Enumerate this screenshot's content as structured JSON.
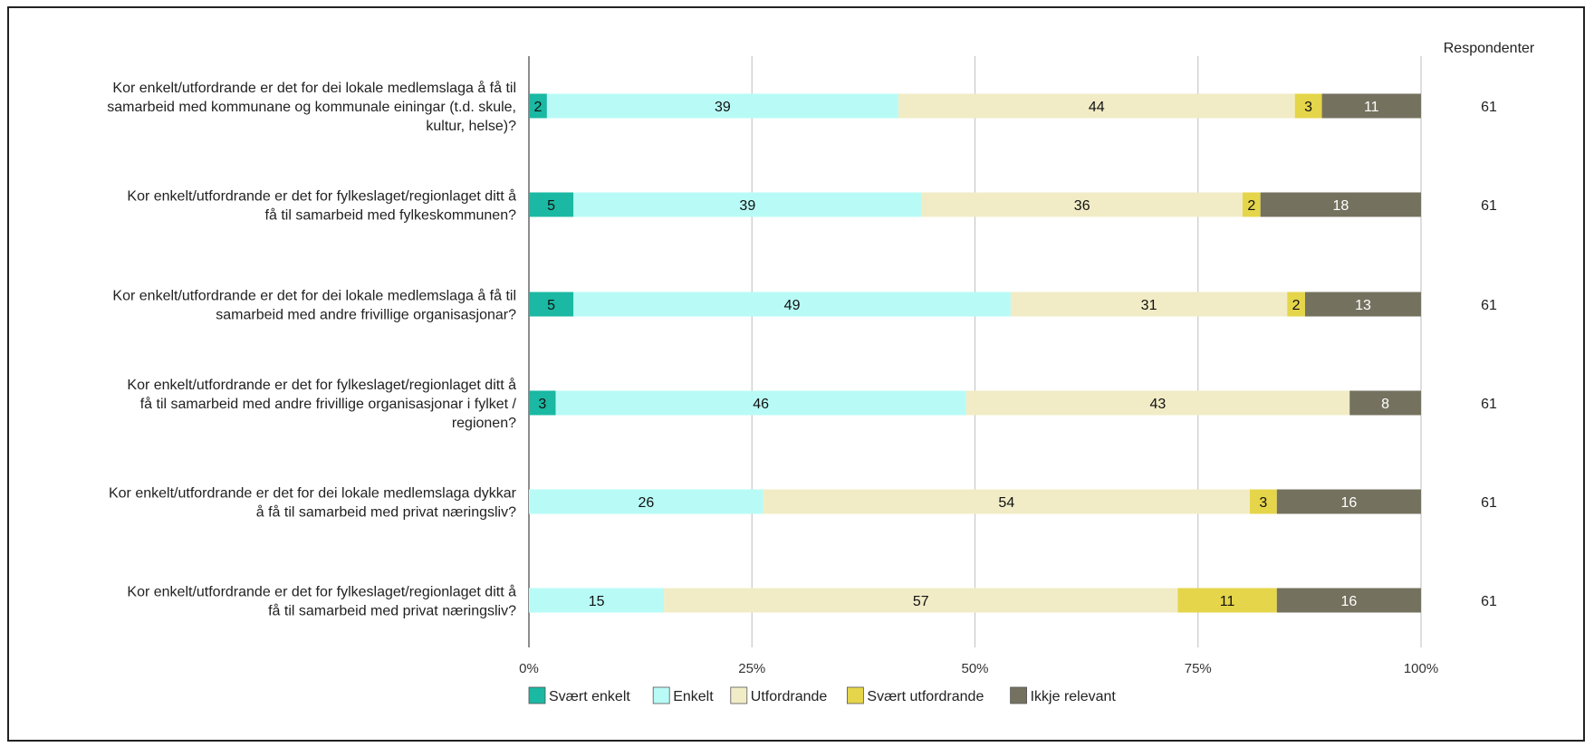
{
  "chart_data": {
    "type": "bar",
    "orientation": "horizontal",
    "stacked": "percent",
    "respondents_header": "Respondenter",
    "categories": [
      [
        "Kor enkelt/utfordrande er det for dei lokale medlemslaga å få til",
        "samarbeid med kommunane og kommunale einingar (t.d. skule,",
        "kultur, helse)?"
      ],
      [
        "Kor enkelt/utfordrande er det for fylkeslaget/regionlaget ditt å",
        "få til samarbeid med fylkeskommunen?"
      ],
      [
        "Kor enkelt/utfordrande er det for dei lokale medlemslaga å få til",
        "samarbeid med andre frivillige organisasjonar?"
      ],
      [
        "Kor enkelt/utfordrande er det for fylkeslaget/regionlaget ditt å",
        "få til samarbeid med andre frivillige organisasjonar i fylket /",
        "regionen?"
      ],
      [
        "Kor enkelt/utfordrande er det for dei lokale medlemslaga dykkar",
        "å få til samarbeid med privat næringsliv?"
      ],
      [
        "Kor enkelt/utfordrande er det for fylkeslaget/regionlaget ditt å",
        "få til samarbeid med privat næringsliv?"
      ]
    ],
    "series": [
      {
        "name": "Svært enkelt",
        "color": "#1bb8a3",
        "text_color": "#111111",
        "values": [
          2,
          5,
          5,
          3,
          0,
          0
        ]
      },
      {
        "name": "Enkelt",
        "color": "#b8fbf6",
        "text_color": "#111111",
        "values": [
          39,
          39,
          49,
          46,
          26,
          15
        ]
      },
      {
        "name": "Utfordrande",
        "color": "#f1ecc6",
        "text_color": "#111111",
        "values": [
          44,
          36,
          31,
          43,
          54,
          57
        ]
      },
      {
        "name": "Svært utfordrande",
        "color": "#e5d54a",
        "text_color": "#111111",
        "values": [
          3,
          2,
          2,
          0,
          3,
          11
        ]
      },
      {
        "name": "Ikkje relevant",
        "color": "#74725f",
        "text_color": "#ffffff",
        "values": [
          11,
          18,
          13,
          8,
          16,
          16
        ]
      }
    ],
    "respondents": [
      61,
      61,
      61,
      61,
      61,
      61
    ],
    "xticks": [
      "0%",
      "25%",
      "50%",
      "75%",
      "100%"
    ],
    "xlim": [
      0,
      100
    ],
    "grid": true,
    "legend": "bottom"
  }
}
